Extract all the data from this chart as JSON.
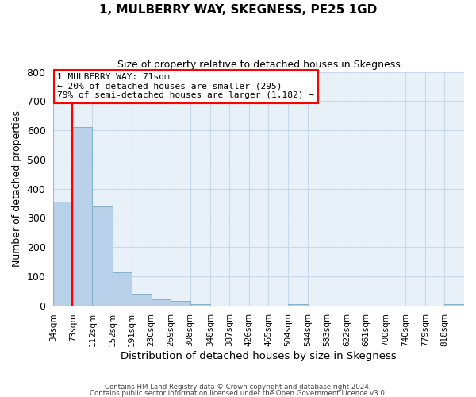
{
  "title": "1, MULBERRY WAY, SKEGNESS, PE25 1GD",
  "subtitle": "Size of property relative to detached houses in Skegness",
  "bar_labels": [
    "34sqm",
    "73sqm",
    "112sqm",
    "152sqm",
    "191sqm",
    "230sqm",
    "269sqm",
    "308sqm",
    "348sqm",
    "387sqm",
    "426sqm",
    "465sqm",
    "504sqm",
    "544sqm",
    "583sqm",
    "622sqm",
    "661sqm",
    "700sqm",
    "740sqm",
    "779sqm",
    "818sqm"
  ],
  "bar_values": [
    355,
    612,
    340,
    113,
    40,
    22,
    15,
    5,
    0,
    0,
    0,
    0,
    5,
    0,
    0,
    0,
    0,
    0,
    0,
    0,
    5
  ],
  "bar_color": "#b8d0e8",
  "bar_edge_color": "#7aaac8",
  "property_line_x": 71,
  "property_line_color": "red",
  "ylim": [
    0,
    800
  ],
  "yticks": [
    0,
    100,
    200,
    300,
    400,
    500,
    600,
    700,
    800
  ],
  "ylabel": "Number of detached properties",
  "xlabel": "Distribution of detached houses by size in Skegness",
  "annotation_title": "1 MULBERRY WAY: 71sqm",
  "annotation_line1": "← 20% of detached houses are smaller (295)",
  "annotation_line2": "79% of semi-detached houses are larger (1,182) →",
  "annotation_box_color": "white",
  "annotation_box_edge_color": "red",
  "grid_color": "#c8d8ea",
  "bg_color": "#e8f0f8",
  "footer1": "Contains HM Land Registry data © Crown copyright and database right 2024.",
  "footer2": "Contains public sector information licensed under the Open Government Licence v3.0.",
  "bin_edges": [
    34,
    73,
    112,
    152,
    191,
    230,
    269,
    308,
    348,
    387,
    426,
    465,
    504,
    544,
    583,
    622,
    661,
    700,
    740,
    779,
    818,
    857
  ]
}
